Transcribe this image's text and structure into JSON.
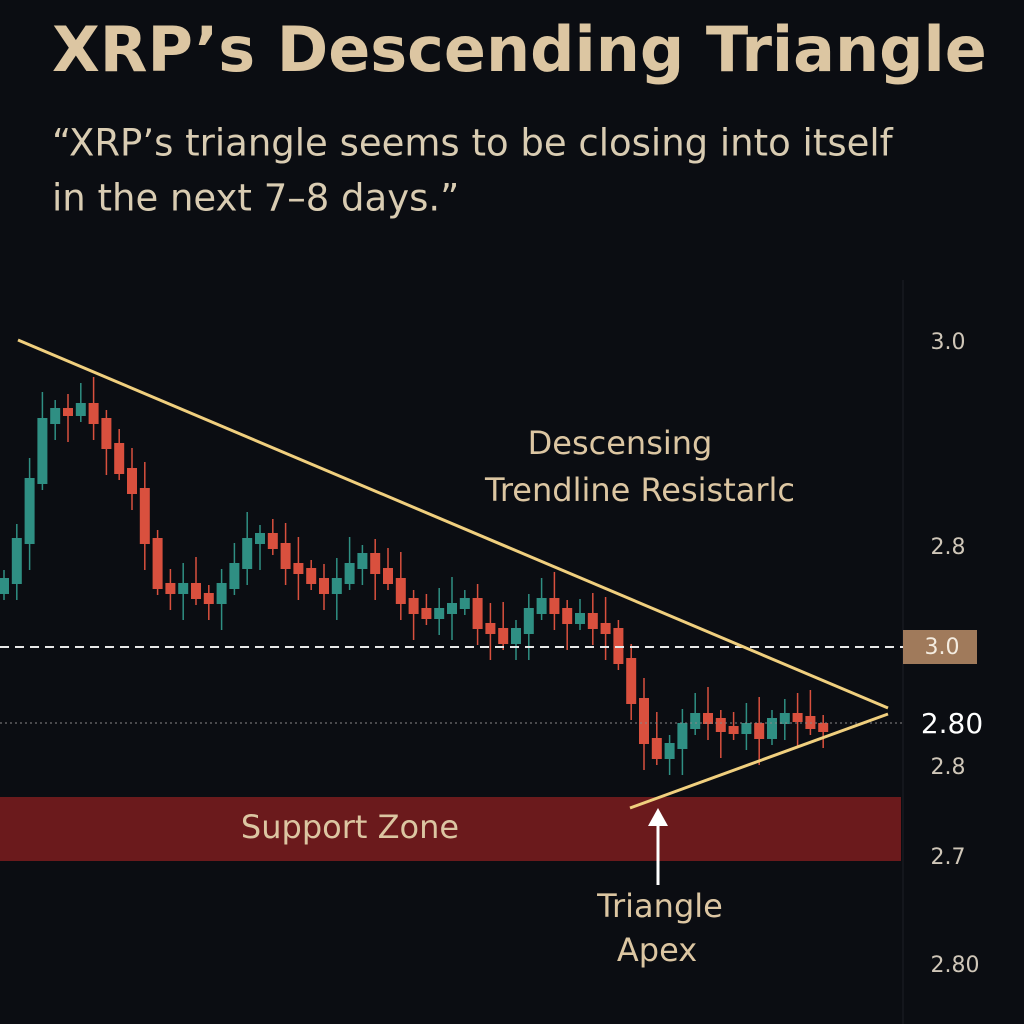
{
  "header": {
    "title": "XRP’s Descending Triangle",
    "quote": [
      "“XRP’s triangle seems to be closing into itself",
      "in the next 7–8 days.”"
    ]
  },
  "chart": {
    "axis_labels": [
      "3.0",
      "2.8",
      "2.80",
      "2.8",
      "2.7",
      "2.80"
    ],
    "current_price": "3.0",
    "annotations": {
      "resistance": [
        "Descensing",
        "Trendline Resistarlc"
      ],
      "support": "Support Zone",
      "apex": [
        "Triangle",
        "Apex"
      ]
    }
  }
}
